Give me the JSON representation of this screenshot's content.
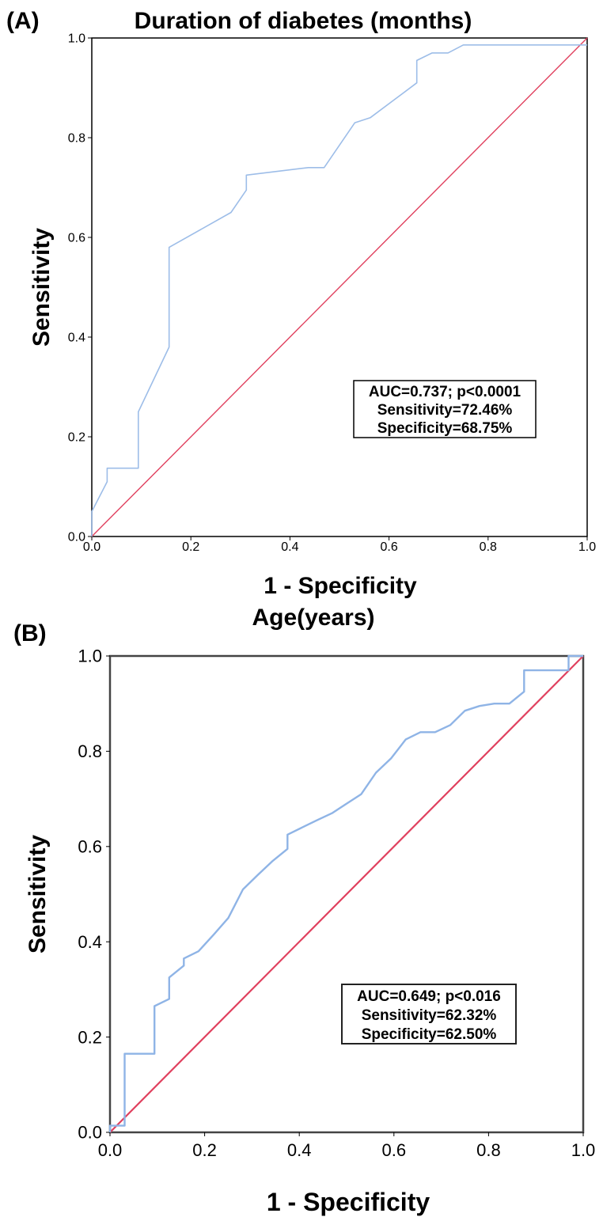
{
  "chart_data": [
    {
      "type": "line",
      "panel_label": "(A)",
      "title": "Duration of diabetes (months)",
      "xlabel": "1 - Specificity",
      "ylabel": "Sensitivity",
      "xlim": [
        0,
        1
      ],
      "ylim": [
        0,
        1
      ],
      "xticks": [
        "0.0",
        "0.2",
        "0.4",
        "0.6",
        "0.8",
        "1.0"
      ],
      "yticks": [
        "0.0",
        "0.2",
        "0.4",
        "0.6",
        "0.8",
        "1.0"
      ],
      "grid": false,
      "annotation": [
        "AUC=0.737; p<0.0001",
        "Sensitivity=72.46%",
        "Specificity=68.75%"
      ],
      "colors": {
        "roc": "#9dbde8",
        "reference": "#e0405e"
      },
      "series": [
        {
          "role": "roc",
          "x": [
            0,
            0,
            0.031,
            0.031,
            0.094,
            0.094,
            0.156,
            0.156,
            0.281,
            0.312,
            0.312,
            0.437,
            0.469,
            0.531,
            0.562,
            0.656,
            0.656,
            0.687,
            0.719,
            0.75,
            1.0
          ],
          "y": [
            0,
            0.05,
            0.11,
            0.137,
            0.137,
            0.25,
            0.38,
            0.58,
            0.65,
            0.695,
            0.725,
            0.74,
            0.74,
            0.83,
            0.84,
            0.91,
            0.955,
            0.97,
            0.97,
            0.986,
            0.986
          ]
        },
        {
          "role": "reference",
          "x": [
            0,
            1
          ],
          "y": [
            0,
            1
          ]
        }
      ]
    },
    {
      "type": "line",
      "panel_label": "(B)",
      "title": "Age(years)",
      "xlabel": "1 - Specificity",
      "ylabel": "Sensitivity",
      "xlim": [
        0,
        1
      ],
      "ylim": [
        0,
        1
      ],
      "xticks": [
        "0.0",
        "0.2",
        "0.4",
        "0.6",
        "0.8",
        "1.0"
      ],
      "yticks": [
        "0.0",
        "0.2",
        "0.4",
        "0.6",
        "0.8",
        "1.0"
      ],
      "grid": false,
      "annotation": [
        "AUC=0.649; p<0.016",
        "Sensitivity=62.32%",
        "Specificity=62.50%"
      ],
      "colors": {
        "roc": "#8fb4e6",
        "reference": "#e0405e"
      },
      "series": [
        {
          "role": "roc",
          "x": [
            0,
            0,
            0.031,
            0.031,
            0.094,
            0.094,
            0.125,
            0.125,
            0.156,
            0.156,
            0.187,
            0.219,
            0.25,
            0.281,
            0.312,
            0.344,
            0.375,
            0.375,
            0.406,
            0.437,
            0.469,
            0.5,
            0.531,
            0.562,
            0.594,
            0.625,
            0.656,
            0.687,
            0.719,
            0.75,
            0.781,
            0.812,
            0.844,
            0.875,
            0.875,
            0.906,
            0.937,
            0.969,
            0.969,
            1.0
          ],
          "y": [
            0,
            0.014,
            0.014,
            0.165,
            0.165,
            0.265,
            0.28,
            0.325,
            0.35,
            0.365,
            0.38,
            0.415,
            0.45,
            0.51,
            0.54,
            0.57,
            0.595,
            0.625,
            0.64,
            0.655,
            0.67,
            0.69,
            0.71,
            0.755,
            0.785,
            0.825,
            0.84,
            0.84,
            0.855,
            0.885,
            0.895,
            0.9,
            0.9,
            0.925,
            0.97,
            0.97,
            0.97,
            0.97,
            1.0,
            1.0
          ]
        },
        {
          "role": "reference",
          "x": [
            0,
            1
          ],
          "y": [
            0,
            1
          ]
        }
      ]
    }
  ]
}
